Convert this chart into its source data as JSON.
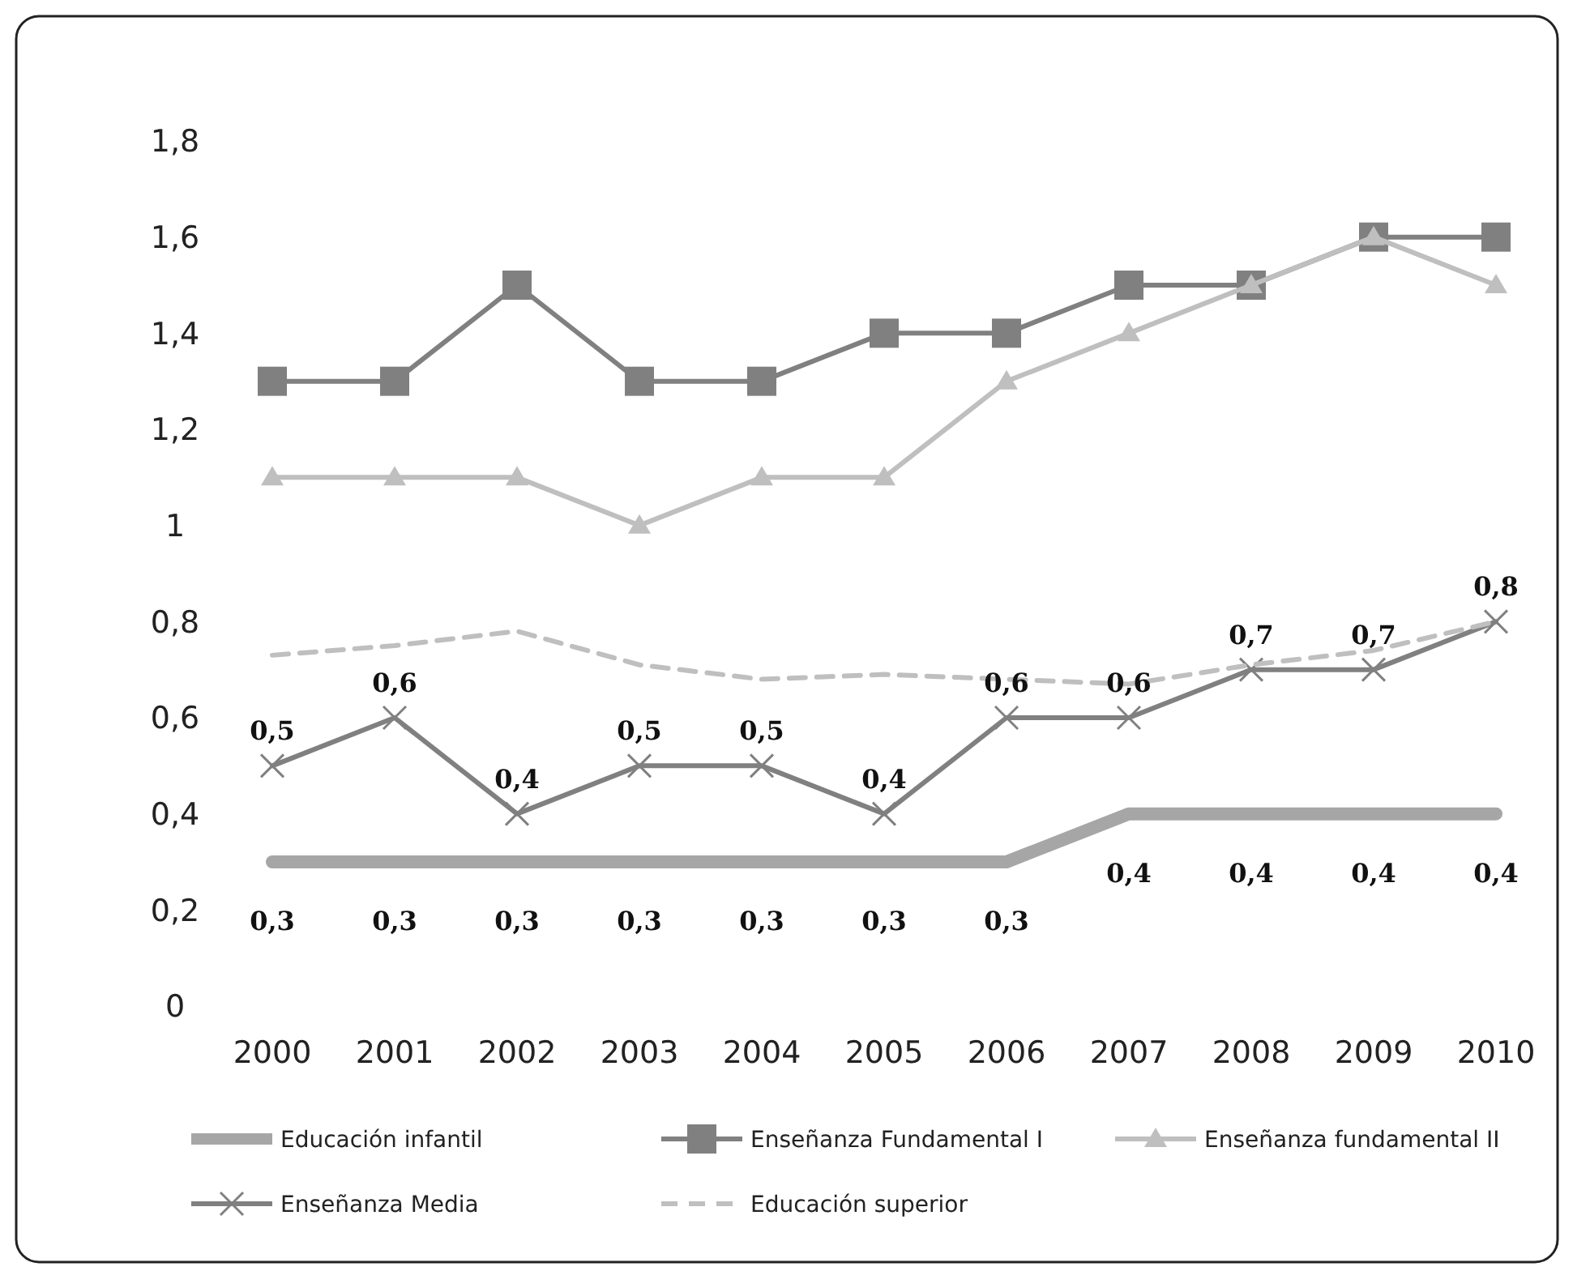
{
  "chart_data": {
    "type": "line",
    "categories": [
      "2000",
      "2001",
      "2002",
      "2003",
      "2004",
      "2005",
      "2006",
      "2007",
      "2008",
      "2009",
      "2010"
    ],
    "ylim": [
      0,
      1.8
    ],
    "yticks": [
      0,
      {
        "value": 0.2,
        "label": "0,2"
      },
      {
        "value": 0.4,
        "label": "0,4"
      },
      {
        "value": 0.6,
        "label": "0,6"
      },
      {
        "value": 0.8,
        "label": "0,8"
      },
      1,
      {
        "value": 1.2,
        "label": "1,2"
      },
      {
        "value": 1.4,
        "label": "1,4"
      },
      {
        "value": 1.6,
        "label": "1,6"
      },
      {
        "value": 1.8,
        "label": "1,8"
      }
    ],
    "grid": false,
    "legend": "bottom",
    "series": [
      {
        "name": "Educación infantil",
        "color": "#a6a6a6",
        "marker": "none",
        "line_style": "solid",
        "values": [
          0.3,
          0.3,
          0.3,
          0.3,
          0.3,
          0.3,
          0.3,
          0.4,
          0.4,
          0.4,
          0.4
        ],
        "value_labels": [
          "0,3",
          "0,3",
          "0,3",
          "0,3",
          "0,3",
          "0,3",
          "0,3",
          "0,4",
          "0,4",
          "0,4",
          "0,4"
        ]
      },
      {
        "name": "Enseñanza Fundamental I",
        "color": "#808080",
        "marker": "square",
        "line_style": "solid",
        "values": [
          1.3,
          1.3,
          1.5,
          1.3,
          1.3,
          1.4,
          1.4,
          1.5,
          1.5,
          1.6,
          1.6
        ]
      },
      {
        "name": "Enseñanza fundamental II",
        "color": "#bfbfbf",
        "marker": "triangle",
        "line_style": "solid",
        "values": [
          1.1,
          1.1,
          1.1,
          1.0,
          1.1,
          1.1,
          1.3,
          1.4,
          1.5,
          1.6,
          1.5
        ]
      },
      {
        "name": "Enseñanza Media",
        "color": "#808080",
        "marker": "cross",
        "line_style": "solid",
        "values": [
          0.5,
          0.6,
          0.4,
          0.5,
          0.5,
          0.4,
          0.6,
          0.6,
          0.7,
          0.7,
          0.8
        ],
        "value_labels": [
          "0,5",
          "0,6",
          "0,4",
          "0,5",
          "0,5",
          "0,4",
          "0,6",
          "0,6",
          "0,7",
          "0,7",
          "0,8"
        ]
      },
      {
        "name": "Educación superior",
        "color": "#bfbfbf",
        "marker": "none",
        "line_style": "dashed",
        "values": [
          0.73,
          0.75,
          0.78,
          0.71,
          0.68,
          0.69,
          0.68,
          0.67,
          0.71,
          0.74,
          0.8
        ]
      }
    ]
  }
}
